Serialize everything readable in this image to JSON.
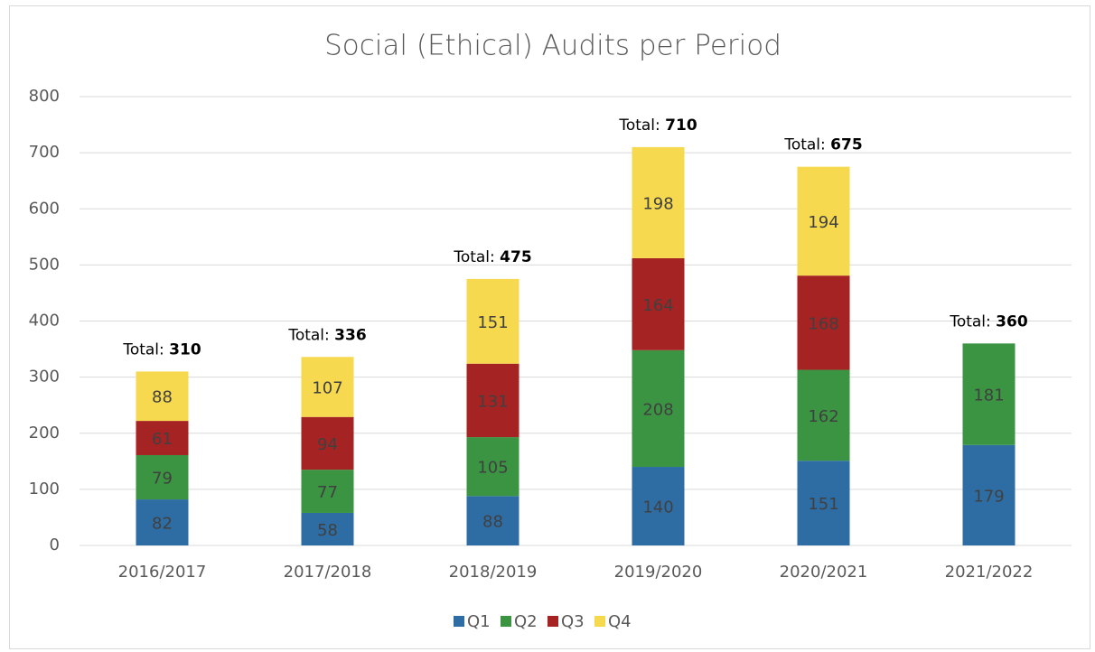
{
  "chart_data": {
    "type": "stacked_bar",
    "title": "Social (Ethical) Audits per Period",
    "categories": [
      "2016/2017",
      "2017/2018",
      "2018/2019",
      "2019/2020",
      "2020/2021",
      "2021/2022"
    ],
    "series": [
      {
        "name": "Q1",
        "color": "#2e6da4",
        "values": [
          82,
          58,
          88,
          140,
          151,
          179
        ]
      },
      {
        "name": "Q2",
        "color": "#3a9441",
        "values": [
          79,
          77,
          105,
          208,
          162,
          181
        ]
      },
      {
        "name": "Q3",
        "color": "#a52323",
        "values": [
          61,
          94,
          131,
          164,
          168,
          null
        ]
      },
      {
        "name": "Q4",
        "color": "#f6d94f",
        "values": [
          88,
          107,
          151,
          198,
          194,
          null
        ]
      }
    ],
    "total_prefix": "Total:",
    "totals": [
      310,
      336,
      475,
      710,
      675,
      360
    ],
    "ylim": [
      0,
      800
    ],
    "yticks": [
      0,
      100,
      200,
      300,
      400,
      500,
      600,
      700,
      800
    ],
    "grid": true,
    "legend": "bottom"
  }
}
